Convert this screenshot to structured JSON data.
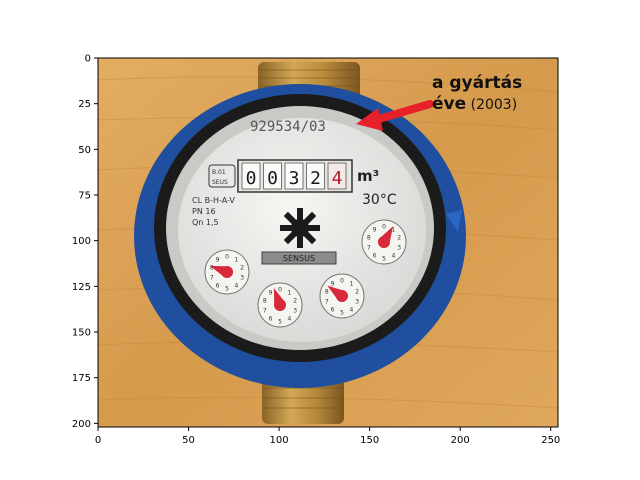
{
  "axes": {
    "x_ticks": [
      "0",
      "50",
      "100",
      "150",
      "200",
      "250"
    ],
    "y_ticks": [
      "0",
      "25",
      "50",
      "75",
      "100",
      "125",
      "150",
      "175",
      "200"
    ]
  },
  "meter": {
    "serial": "929534/03",
    "counter_digits": [
      "0",
      "0",
      "3",
      "2",
      "4"
    ],
    "unit": "m³",
    "temperature": "30°C",
    "spec_lines": [
      "CL B-H-A-V",
      "PN 16",
      "Qn 1,5"
    ],
    "brand_plate": "SENSUS",
    "badge": [
      "B.01",
      "SEUS"
    ]
  },
  "annotation": {
    "line1": "a gyártás",
    "line2_bold": "éve",
    "line2_rest": " (2003)"
  },
  "colors": {
    "wood": "#d9a054",
    "bezel_blue": "#2a5fb0",
    "pointer_red": "#d8293a",
    "arrow_red": "#e8202a",
    "brass": "#b88a3c"
  }
}
